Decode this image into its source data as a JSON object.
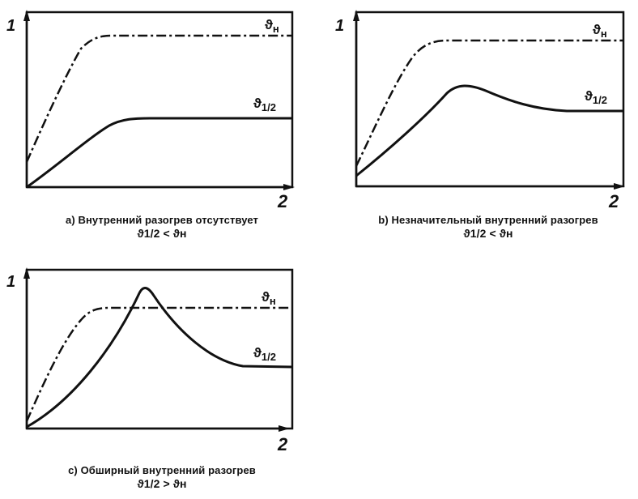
{
  "panels": [
    {
      "id": "a",
      "y_label": "1",
      "x_label": "2",
      "upper_curve_symbol": "ϑ",
      "upper_curve_sub": "н",
      "lower_curve_symbol": "ϑ",
      "lower_curve_sub": "1/2",
      "caption_line1": "a) Внутренний разогрев отсутствует",
      "caption_line2": "ϑ1/2 < ϑн"
    },
    {
      "id": "b",
      "y_label": "1",
      "x_label": "2",
      "upper_curve_symbol": "ϑ",
      "upper_curve_sub": "н",
      "lower_curve_symbol": "ϑ",
      "lower_curve_sub": "1/2",
      "caption_line1": "b) Незначительный внутренний разогрев",
      "caption_line2": "ϑ1/2 < ϑн"
    },
    {
      "id": "c",
      "y_label": "1",
      "x_label": "2",
      "upper_curve_symbol": "ϑ",
      "upper_curve_sub": "н",
      "lower_curve_symbol": "ϑ",
      "lower_curve_sub": "1/2",
      "caption_line1": "c) Обширный внутренний разогрев",
      "caption_line2": "ϑ1/2 > ϑн"
    }
  ],
  "colors": {
    "ink": "#111111",
    "background": "#ffffff"
  }
}
